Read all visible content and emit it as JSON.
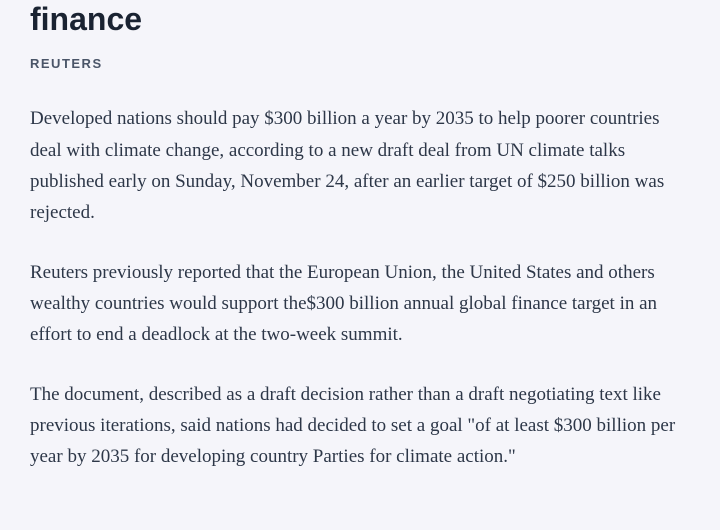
{
  "title": "finance",
  "source": "REUTERS",
  "paragraphs": [
    "Developed nations should pay $300 billion a year by 2035 to help poorer countries deal with climate change, according to a new draft deal from UN climate talks published early on Sunday, November 24, after an earlier target of $250 billion was rejected.",
    "Reuters previously reported that the European Union, the United States and others wealthy countries would support the$300 billion annual global finance target in an effort to end a deadlock at the two-week summit.",
    "The document, described as a draft decision rather than a draft negotiating text like previous iterations, said nations had decided to set a goal \"of at least $300 billion per year by 2035 for developing country Parties for climate action.\""
  ],
  "colors": {
    "background": "#f5f5fa",
    "title": "#1a2332",
    "source": "#4a5568",
    "body_text": "#2d3748"
  },
  "typography": {
    "title_size": 32,
    "title_weight": 700,
    "source_size": 13,
    "source_weight": 700,
    "source_letter_spacing": 1.5,
    "body_size": 19,
    "body_line_height": 1.65
  }
}
